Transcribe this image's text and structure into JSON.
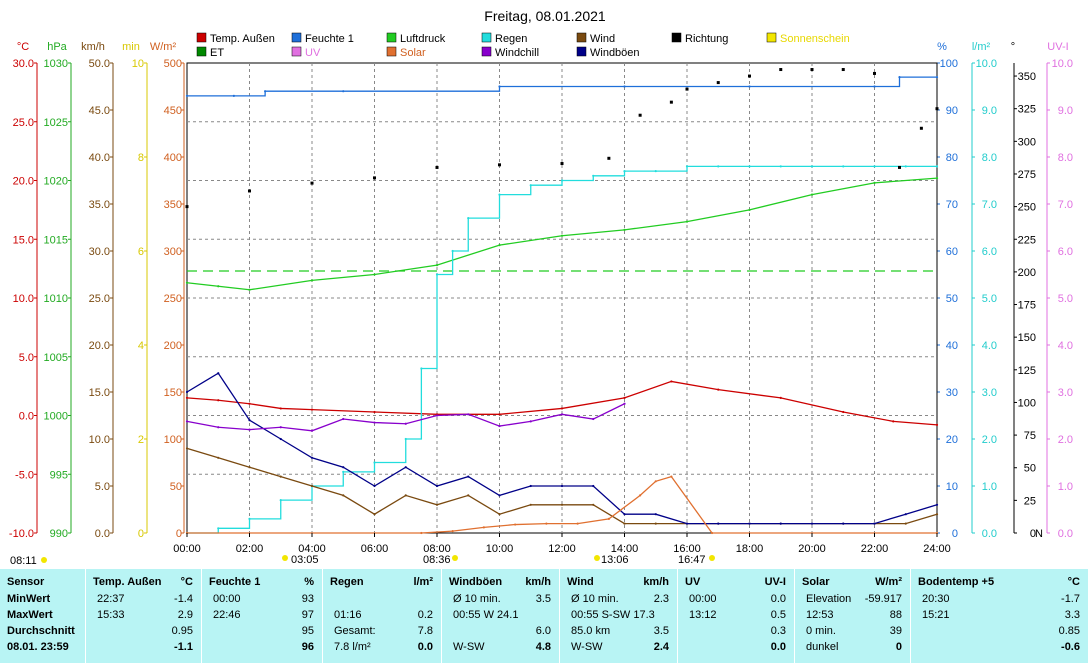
{
  "title": "Freitag, 08.01.2021",
  "legend": [
    {
      "label": "Temp. Außen",
      "color": "#cc0000",
      "row": 0,
      "col": 0
    },
    {
      "label": "Feuchte 1",
      "color": "#1e6fd9",
      "row": 0,
      "col": 1
    },
    {
      "label": "Luftdruck",
      "color": "#22cc22",
      "row": 0,
      "col": 2
    },
    {
      "label": "Regen",
      "color": "#22dddd",
      "row": 0,
      "col": 3
    },
    {
      "label": "Wind",
      "color": "#7a4a10",
      "row": 0,
      "col": 4
    },
    {
      "label": "Richtung",
      "color": "#000000",
      "row": 0,
      "col": 5
    },
    {
      "label": "Sonnenschein",
      "color": "#f2e600",
      "row": 0,
      "col": 6
    },
    {
      "label": "ET",
      "color": "#008800",
      "row": 1,
      "col": 0
    },
    {
      "label": "UV",
      "color": "#e070e0",
      "row": 1,
      "col": 1
    },
    {
      "label": "Solar",
      "color": "#e07030",
      "row": 1,
      "col": 2
    },
    {
      "label": "Windchill",
      "color": "#8800cc",
      "row": 1,
      "col": 3
    },
    {
      "label": "Windböen",
      "color": "#000088",
      "row": 1,
      "col": 4
    }
  ],
  "axes": {
    "temp": {
      "unit": "°C",
      "color": "#cc0000",
      "ticks": [
        "30.0",
        "25.0",
        "20.0",
        "15.0",
        "10.0",
        "5.0",
        "0.0",
        "-5.0",
        "-10.0"
      ]
    },
    "pressure": {
      "unit": "hPa",
      "color": "#22aa22",
      "ticks": [
        "1030",
        "1025",
        "1020",
        "1015",
        "1010",
        "1005",
        "1000",
        "995",
        "990"
      ]
    },
    "wind": {
      "unit": "km/h",
      "color": "#7a4a10",
      "ticks": [
        "50.0",
        "45.0",
        "40.0",
        "35.0",
        "30.0",
        "25.0",
        "20.0",
        "15.0",
        "10.0",
        "5.0",
        "0.0"
      ]
    },
    "min": {
      "unit": "min",
      "color": "#d8c800",
      "ticks": [
        "10",
        "8",
        "6",
        "4",
        "2",
        "0"
      ]
    },
    "solar": {
      "unit": "W/m²",
      "color": "#d06020",
      "ticks": [
        "500",
        "450",
        "400",
        "350",
        "300",
        "250",
        "200",
        "150",
        "100",
        "50",
        "0"
      ]
    },
    "humidity": {
      "unit": "%",
      "color": "#1e6fd9",
      "ticks": [
        "100",
        "90",
        "80",
        "70",
        "60",
        "50",
        "40",
        "30",
        "20",
        "10",
        "0"
      ]
    },
    "rain": {
      "unit": "l/m²",
      "color": "#22cccc",
      "ticks": [
        "10.0",
        "9.0",
        "8.0",
        "7.0",
        "6.0",
        "5.0",
        "4.0",
        "3.0",
        "2.0",
        "1.0",
        "0.0"
      ]
    },
    "direction": {
      "unit": "°",
      "color": "#000000",
      "ticks": [
        "350",
        "325",
        "300",
        "275",
        "250",
        "225",
        "200",
        "175",
        "150",
        "125",
        "100",
        "75",
        "50",
        "25",
        "0"
      ],
      "n_label": "N"
    },
    "uv": {
      "unit": "UV-I",
      "color": "#e070e0",
      "ticks": [
        "10.0",
        "9.0",
        "8.0",
        "7.0",
        "6.0",
        "5.0",
        "4.0",
        "3.0",
        "2.0",
        "1.0",
        "0.0"
      ]
    }
  },
  "x_ticks": [
    "00:00",
    "02:00",
    "04:00",
    "06:00",
    "08:00",
    "10:00",
    "12:00",
    "14:00",
    "16:00",
    "18:00",
    "20:00",
    "22:00",
    "24:00"
  ],
  "sun_marks": {
    "sunrise": "08:36",
    "sunset": "16:47",
    "rise_label": "03:05",
    "peak_label": "13:06",
    "lead_label": "08:11"
  },
  "chart_data": {
    "type": "line",
    "x_range": [
      "00:00",
      "24:00"
    ],
    "series": [
      {
        "name": "Temp. Außen",
        "axis": "temp",
        "x": [
          0,
          1,
          2,
          3,
          4,
          6,
          8,
          10,
          12,
          14,
          15.5,
          17,
          19,
          21,
          22.6,
          24
        ],
        "values": [
          1.5,
          1.3,
          1.0,
          0.6,
          0.5,
          0.3,
          0.1,
          0.1,
          0.6,
          1.5,
          2.9,
          2.2,
          1.5,
          0.3,
          -0.5,
          -0.8
        ]
      },
      {
        "name": "Feuchte 1",
        "axis": "humidity",
        "x": [
          0,
          1.5,
          2.5,
          5,
          10,
          14,
          18,
          22,
          22.8,
          24
        ],
        "values": [
          93,
          93,
          94,
          94,
          95,
          95,
          95,
          95,
          97,
          97
        ]
      },
      {
        "name": "Luftdruck",
        "axis": "pressure",
        "x": [
          0,
          1,
          2,
          4,
          6,
          8,
          10,
          12,
          14,
          16,
          18,
          20,
          22,
          24
        ],
        "values": [
          1011.3,
          1011,
          1010.7,
          1011.5,
          1012,
          1012.8,
          1014.5,
          1015.3,
          1015.8,
          1016.5,
          1017.5,
          1018.8,
          1019.8,
          1020.2
        ]
      },
      {
        "name": "Regen",
        "axis": "rain",
        "x": [
          0,
          1,
          2,
          3,
          4,
          5,
          6,
          7,
          7.5,
          8,
          8.5,
          9,
          10,
          11,
          12,
          13,
          14,
          15,
          16,
          17,
          18,
          19,
          20,
          21,
          22,
          23,
          24
        ],
        "values": [
          0,
          0.1,
          0.3,
          0.7,
          1.0,
          1.3,
          1.5,
          2.0,
          3.5,
          5.5,
          6.0,
          6.7,
          7.2,
          7.4,
          7.5,
          7.6,
          7.7,
          7.7,
          7.8,
          7.8,
          7.8,
          7.8,
          7.8,
          7.8,
          7.8,
          7.8,
          7.8
        ]
      },
      {
        "name": "Wind",
        "axis": "wind",
        "x": [
          0,
          1,
          2,
          3,
          4,
          5,
          6,
          7,
          8,
          9,
          10,
          11,
          12,
          13,
          14,
          15,
          16,
          17,
          18,
          19,
          20,
          21,
          22,
          23,
          24
        ],
        "values": [
          9,
          8,
          7,
          6,
          5,
          4,
          2,
          4,
          3,
          4,
          2,
          3,
          3,
          3,
          1,
          1,
          1,
          1,
          1,
          1,
          1,
          1,
          1,
          1,
          2
        ]
      },
      {
        "name": "Windböen",
        "axis": "wind",
        "x": [
          0,
          1,
          2,
          3,
          4,
          5,
          6,
          7,
          8,
          9,
          10,
          11,
          12,
          13,
          14,
          15,
          16,
          17,
          18,
          19,
          20,
          21,
          22,
          23,
          24
        ],
        "values": [
          15,
          17,
          12,
          10,
          8,
          7,
          5,
          7,
          5,
          6,
          4,
          5,
          5,
          5,
          2,
          2,
          1,
          1,
          1,
          1,
          1,
          1,
          1,
          2,
          3
        ]
      },
      {
        "name": "Richtung",
        "axis": "direction",
        "x": [
          0,
          2,
          4,
          6,
          8,
          10,
          12,
          13.5,
          14.5,
          15.5,
          16,
          17,
          18,
          19,
          20,
          21,
          22,
          22.8,
          23.5,
          24
        ],
        "values": [
          250,
          262,
          268,
          272,
          280,
          282,
          283,
          287,
          320,
          330,
          340,
          345,
          350,
          355,
          355,
          355,
          352,
          280,
          310,
          325
        ]
      },
      {
        "name": "Solar",
        "axis": "solar",
        "x": [
          0,
          7.5,
          8.5,
          9.5,
          10.5,
          11.5,
          12.5,
          13.5,
          14.5,
          15,
          15.5,
          16.8,
          24
        ],
        "values": [
          0,
          0,
          2,
          6,
          9,
          10,
          10,
          15,
          40,
          55,
          60,
          0,
          0
        ]
      },
      {
        "name": "Windchill",
        "axis": "temp",
        "x": [
          0,
          1,
          2,
          3,
          4,
          5,
          6,
          7,
          8,
          9,
          10,
          11,
          12,
          13,
          14
        ],
        "values": [
          -0.5,
          -1,
          -1.2,
          -1.0,
          -1.3,
          -0.3,
          -0.6,
          -0.7,
          0.0,
          0.1,
          -0.9,
          -0.5,
          0.1,
          -0.3,
          1.0
        ]
      }
    ],
    "reference_line": {
      "axis": "pressure",
      "value": 1012.3,
      "color": "#22cc22"
    }
  },
  "summary": {
    "columns": [
      {
        "header": "Sensor",
        "unit": "",
        "rows": [
          [
            "MinWert",
            ""
          ],
          [
            "MaxWert",
            ""
          ],
          [
            "Durchschnitt",
            ""
          ],
          [
            "08.01. 23:59",
            ""
          ]
        ],
        "bold_last": true
      },
      {
        "header": "Temp. Außen",
        "unit": "°C",
        "rows": [
          [
            "22:37",
            "-1.4"
          ],
          [
            "15:33",
            "2.9"
          ],
          [
            "",
            "0.95"
          ],
          [
            "",
            "-1.1"
          ]
        ]
      },
      {
        "header": "Feuchte 1",
        "unit": "%",
        "rows": [
          [
            "00:00",
            "93"
          ],
          [
            "22:46",
            "97"
          ],
          [
            "",
            "95"
          ],
          [
            "",
            "96"
          ]
        ]
      },
      {
        "header": "Regen",
        "unit": "l/m²",
        "rows": [
          [
            "",
            ""
          ],
          [
            "01:16",
            "0.2"
          ],
          [
            "Gesamt:",
            "7.8"
          ],
          [
            "7.8 l/m²",
            "0.0"
          ]
        ]
      },
      {
        "header": "Windböen",
        "unit": "km/h",
        "rows": [
          [
            "Ø 10 min.",
            "3.5"
          ],
          [
            "00:55   W 24.1",
            ""
          ],
          [
            "",
            "6.0"
          ],
          [
            "W-SW",
            "4.8"
          ]
        ]
      },
      {
        "header": "Wind",
        "unit": "km/h",
        "rows": [
          [
            "Ø 10 min.",
            "2.3"
          ],
          [
            "00:55   S-SW 17.3",
            ""
          ],
          [
            "85.0 km",
            "3.5"
          ],
          [
            "W-SW",
            "2.4"
          ]
        ]
      },
      {
        "header": "UV",
        "unit": "UV-I",
        "rows": [
          [
            "00:00",
            "0.0"
          ],
          [
            "13:12",
            "0.5"
          ],
          [
            "",
            "0.3"
          ],
          [
            "",
            "0.0"
          ]
        ]
      },
      {
        "header": "Solar",
        "unit": "W/m²",
        "rows": [
          [
            "Elevation",
            "-59.917"
          ],
          [
            "12:53",
            "88"
          ],
          [
            "0 min.",
            "39"
          ],
          [
            "dunkel",
            "0"
          ]
        ]
      },
      {
        "header": "Bodentemp +5",
        "unit": "°C",
        "rows": [
          [
            "20:30",
            "-1.7"
          ],
          [
            "15:21",
            "3.3"
          ],
          [
            "",
            "0.85"
          ],
          [
            "",
            "-0.6"
          ]
        ]
      }
    ]
  }
}
